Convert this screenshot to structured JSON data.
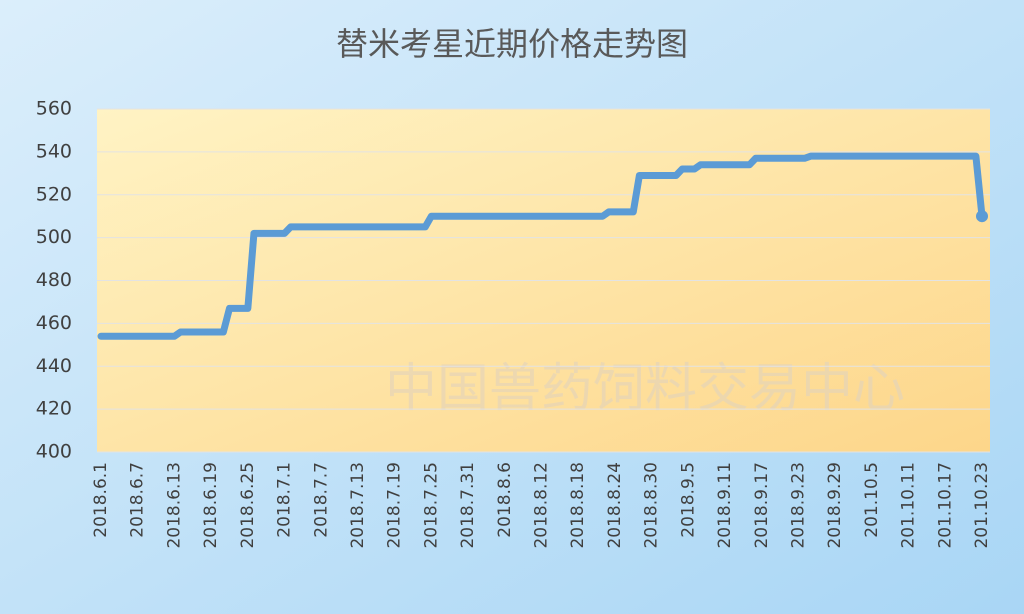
{
  "chart_data": {
    "type": "line",
    "title": "替米考星近期价格走势图",
    "annotations": [
      "中国兽药饲料交易中心"
    ],
    "categories": [
      "2018.6.1",
      null,
      null,
      null,
      null,
      null,
      "2018.6.7",
      null,
      null,
      null,
      null,
      null,
      "2018.6.13",
      null,
      null,
      null,
      null,
      null,
      "2018.6.19",
      null,
      null,
      null,
      null,
      null,
      "2018.6.25",
      null,
      null,
      null,
      null,
      null,
      "2018.7.1",
      null,
      null,
      null,
      null,
      null,
      "2018.7.7",
      null,
      null,
      null,
      null,
      null,
      "2018.7.13",
      null,
      null,
      null,
      null,
      null,
      "2018.7.19",
      null,
      null,
      null,
      null,
      null,
      "2018.7.25",
      null,
      null,
      null,
      null,
      null,
      "2018.7.31",
      null,
      null,
      null,
      null,
      null,
      "2018.8.6",
      null,
      null,
      null,
      null,
      null,
      "2018.8.12",
      null,
      null,
      null,
      null,
      null,
      "2018.8.18",
      null,
      null,
      null,
      null,
      null,
      "2018.8.24",
      null,
      null,
      null,
      null,
      null,
      "2018.8.30",
      null,
      null,
      null,
      null,
      null,
      "2018.9.5",
      null,
      null,
      null,
      null,
      null,
      "2018.9.11",
      null,
      null,
      null,
      null,
      null,
      "2018.9.17",
      null,
      null,
      null,
      null,
      null,
      "2018.9.23",
      null,
      null,
      null,
      null,
      null,
      "2018.9.29",
      null,
      null,
      null,
      null,
      null,
      "201.10.5",
      null,
      null,
      null,
      null,
      null,
      "201.10.11",
      null,
      null,
      null,
      null,
      null,
      "201.10.17",
      null,
      null,
      null,
      null,
      null,
      "201.10.23"
    ],
    "series": [
      {
        "name": "替米考星",
        "color": "#5b9bd5",
        "values": [
          454,
          454,
          454,
          454,
          454,
          454,
          454,
          454,
          454,
          454,
          454,
          454,
          454,
          456,
          456,
          456,
          456,
          456,
          456,
          456,
          456,
          467,
          467,
          467,
          467,
          502,
          502,
          502,
          502,
          502,
          502,
          505,
          505,
          505,
          505,
          505,
          505,
          505,
          505,
          505,
          505,
          505,
          505,
          505,
          505,
          505,
          505,
          505,
          505,
          505,
          505,
          505,
          505,
          505,
          510,
          510,
          510,
          510,
          510,
          510,
          510,
          510,
          510,
          510,
          510,
          510,
          510,
          510,
          510,
          510,
          510,
          510,
          510,
          510,
          510,
          510,
          510,
          510,
          510,
          510,
          510,
          510,
          510,
          512,
          512,
          512,
          512,
          512,
          529,
          529,
          529,
          529,
          529,
          529,
          529,
          532,
          532,
          532,
          534,
          534,
          534,
          534,
          534,
          534,
          534,
          534,
          534,
          537,
          537,
          537,
          537,
          537,
          537,
          537,
          537,
          537,
          538,
          538,
          538,
          538,
          538,
          538,
          538,
          538,
          538,
          538,
          538,
          538,
          538,
          538,
          538,
          538,
          538,
          538,
          538,
          538,
          538,
          538,
          538,
          538,
          538,
          538,
          538,
          538,
          510
        ]
      }
    ],
    "ylim": [
      400,
      560
    ],
    "yticks": [
      400,
      420,
      440,
      460,
      480,
      500,
      520,
      540,
      560
    ],
    "grid": true
  }
}
